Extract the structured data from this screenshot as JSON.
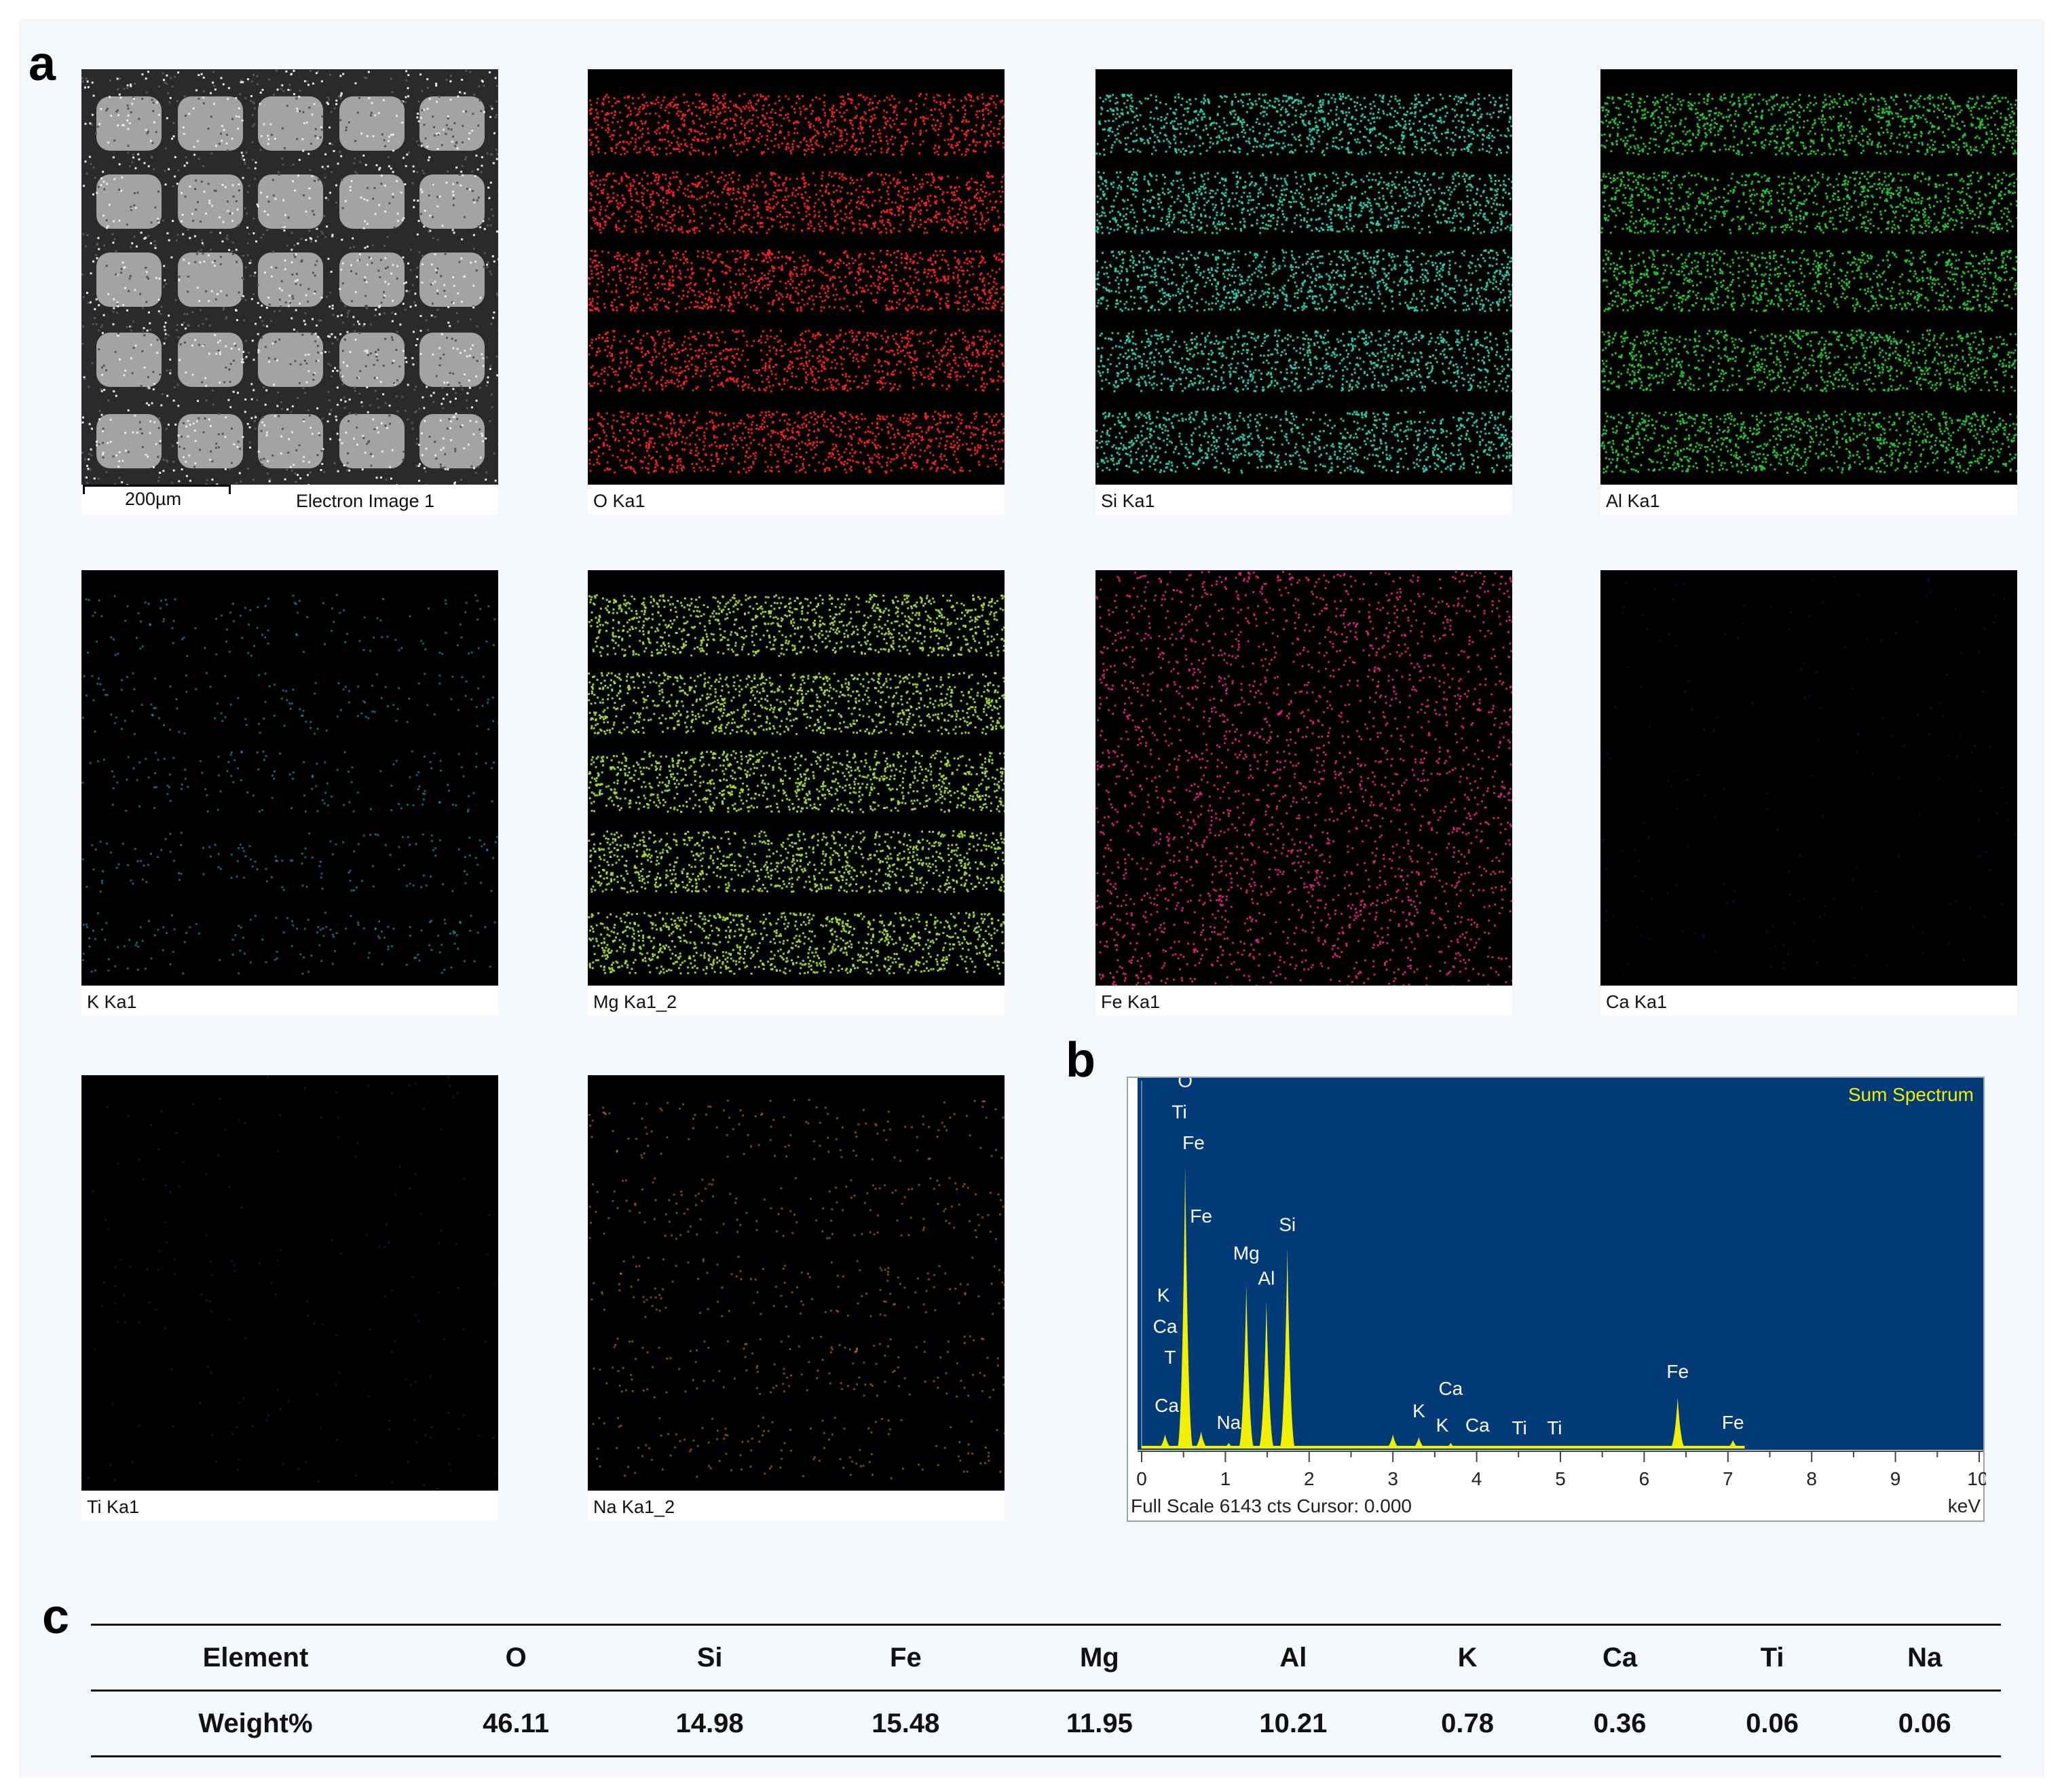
{
  "panel_labels": {
    "a": "a",
    "b": "b",
    "c": "c"
  },
  "scale_bar_label": "200µm",
  "maps": [
    {
      "name": "electron",
      "caption": "",
      "caption2": "Electron Image 1",
      "color": "#c8c8c8",
      "density": "high"
    },
    {
      "name": "o",
      "caption": "O Ka1",
      "caption2": "",
      "color": "#ff2020",
      "density": "high"
    },
    {
      "name": "si",
      "caption": "Si Ka1",
      "caption2": "",
      "color": "#25d5b5",
      "density": "high"
    },
    {
      "name": "al",
      "caption": "Al Ka1",
      "caption2": "",
      "color": "#1fcf37",
      "density": "high"
    },
    {
      "name": "k",
      "caption": "K Ka1",
      "caption2": "",
      "color": "#2aa6d6",
      "density": "low"
    },
    {
      "name": "mg",
      "caption": "Mg Ka1_2",
      "caption2": "",
      "color": "#a8e22a",
      "density": "high"
    },
    {
      "name": "fe",
      "caption": "Fe Ka1",
      "caption2": "",
      "color": "#e0207a",
      "density": "medium"
    },
    {
      "name": "ca",
      "caption": "Ca Ka1",
      "caption2": "",
      "color": "#1b1bb0",
      "density": "verylow"
    },
    {
      "name": "ti",
      "caption": "Ti Ka1",
      "caption2": "",
      "color": "#3030a0",
      "density": "verylow"
    },
    {
      "name": "na",
      "caption": "Na Ka1_2",
      "caption2": "",
      "color": "#d08020",
      "density": "low"
    }
  ],
  "spectrum": {
    "title": "Sum Spectrum",
    "footer": "Full Scale 6143 cts Cursor: 0.000",
    "unit": "keV",
    "bg_color": "#033a78",
    "peak_color": "#f0f000",
    "x_ticks": [
      "0",
      "1",
      "2",
      "3",
      "4",
      "5",
      "6",
      "7",
      "8",
      "9",
      "10"
    ]
  },
  "chart_data": {
    "type": "line",
    "title": "Sum Spectrum",
    "xlabel": "keV",
    "xlim": [
      0,
      10
    ],
    "full_scale_counts": 6143,
    "peaks": [
      {
        "x": 0.28,
        "rel": 0.05
      },
      {
        "x": 0.52,
        "rel": 1.0
      },
      {
        "x": 0.71,
        "rel": 0.06
      },
      {
        "x": 1.04,
        "rel": 0.02
      },
      {
        "x": 1.25,
        "rel": 0.58
      },
      {
        "x": 1.49,
        "rel": 0.52
      },
      {
        "x": 1.74,
        "rel": 0.71
      },
      {
        "x": 3.0,
        "rel": 0.05
      },
      {
        "x": 3.31,
        "rel": 0.04
      },
      {
        "x": 3.69,
        "rel": 0.02
      },
      {
        "x": 4.51,
        "rel": 0.01
      },
      {
        "x": 6.4,
        "rel": 0.18
      },
      {
        "x": 7.06,
        "rel": 0.03
      }
    ],
    "peak_labels": [
      {
        "text": "O",
        "x": 0.52,
        "level": 1.28
      },
      {
        "text": "Ti",
        "x": 0.45,
        "level": 1.17
      },
      {
        "text": "Fe",
        "x": 0.62,
        "level": 1.06
      },
      {
        "text": "Fe",
        "x": 0.71,
        "level": 0.8
      },
      {
        "text": "K",
        "x": 0.26,
        "level": 0.52
      },
      {
        "text": "Ca",
        "x": 0.28,
        "level": 0.41
      },
      {
        "text": "T",
        "x": 0.34,
        "level": 0.3
      },
      {
        "text": "Ca",
        "x": 0.3,
        "level": 0.13
      },
      {
        "text": "Na",
        "x": 1.04,
        "level": 0.07
      },
      {
        "text": "Mg",
        "x": 1.25,
        "level": 0.67
      },
      {
        "text": "Al",
        "x": 1.49,
        "level": 0.58
      },
      {
        "text": "Si",
        "x": 1.74,
        "level": 0.77
      },
      {
        "text": "K",
        "x": 3.31,
        "level": 0.11
      },
      {
        "text": "Ca",
        "x": 3.69,
        "level": 0.19
      },
      {
        "text": "K",
        "x": 3.59,
        "level": 0.06
      },
      {
        "text": "Ca",
        "x": 4.01,
        "level": 0.06
      },
      {
        "text": "Ti",
        "x": 4.51,
        "level": 0.05
      },
      {
        "text": "Ti",
        "x": 4.93,
        "level": 0.05
      },
      {
        "text": "Fe",
        "x": 6.4,
        "level": 0.25
      },
      {
        "text": "Fe",
        "x": 7.06,
        "level": 0.07
      }
    ]
  },
  "table": {
    "headers": [
      "Element",
      "O",
      "Si",
      "Fe",
      "Mg",
      "Al",
      "K",
      "Ca",
      "Ti",
      "Na"
    ],
    "row": [
      "Weight%",
      "46.11",
      "14.98",
      "15.48",
      "11.95",
      "10.21",
      "0.78",
      "0.36",
      "0.06",
      "0.06"
    ]
  }
}
